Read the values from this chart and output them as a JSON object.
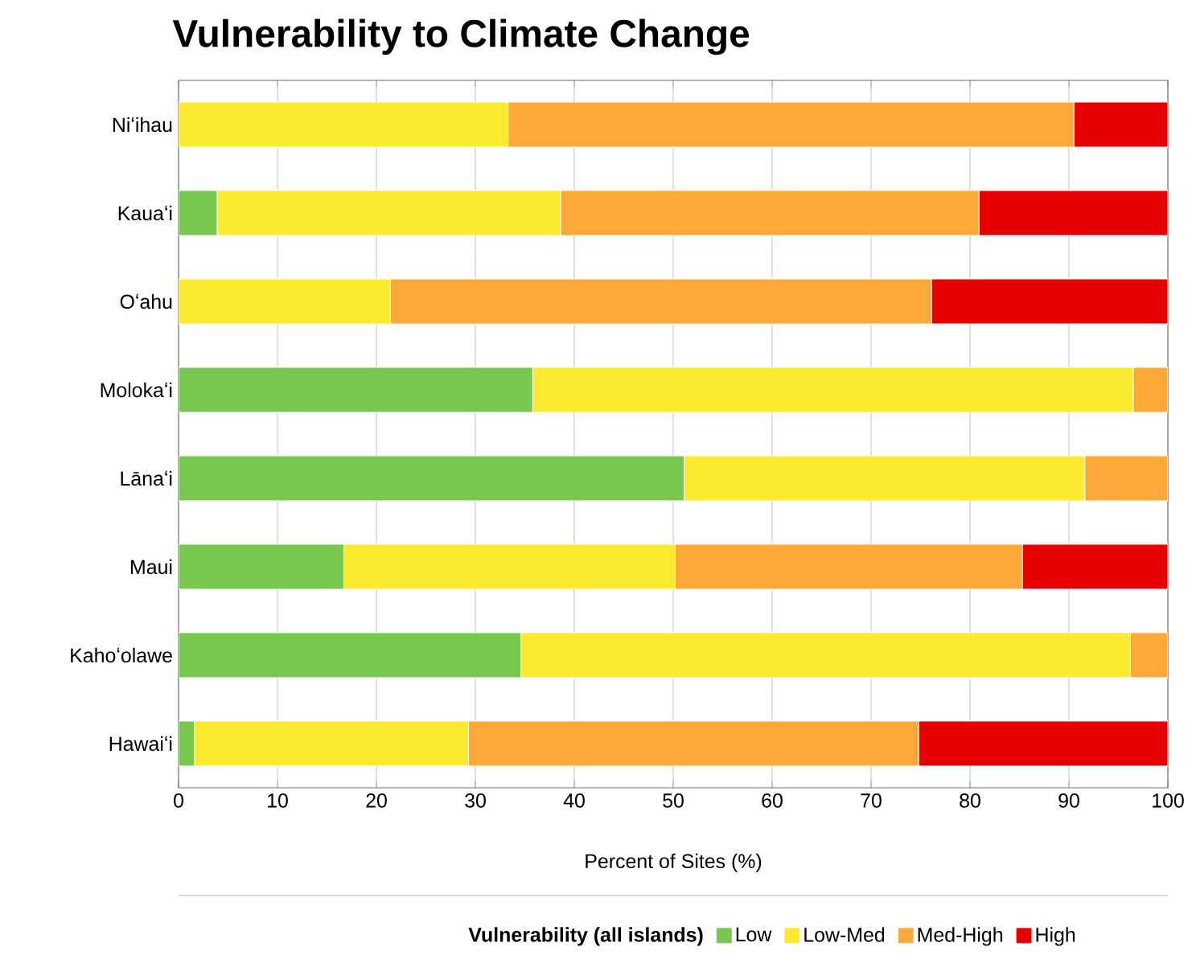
{
  "chart_data": {
    "type": "bar",
    "orientation": "horizontal",
    "stacked": true,
    "title": "Vulnerability to Climate Change",
    "xlabel": "Percent of Sites (%)",
    "legend_title": "Vulnerability (all islands)",
    "categories": [
      "Niʻihau",
      "Kauaʻi",
      "Oʻahu",
      "Molokaʻi",
      "Lānaʻi",
      "Maui",
      "Kahoʻolawe",
      "Hawaiʻi"
    ],
    "series": [
      {
        "name": "Low",
        "color": "#78c850",
        "values": [
          0,
          3.9,
          0,
          35.8,
          51.1,
          16.7,
          34.6,
          1.6
        ]
      },
      {
        "name": "Low-Med",
        "color": "#fbea30",
        "values": [
          33.3,
          34.7,
          21.4,
          60.7,
          40.5,
          33.5,
          61.6,
          27.7
        ]
      },
      {
        "name": "Med-High",
        "color": "#fda93a",
        "values": [
          57.2,
          42.3,
          54.7,
          3.5,
          8.4,
          35.1,
          3.8,
          45.5
        ]
      },
      {
        "name": "High",
        "color": "#e60000",
        "values": [
          9.5,
          19.1,
          23.9,
          0,
          0,
          14.7,
          0,
          25.2
        ]
      }
    ],
    "xlim": [
      0,
      100
    ],
    "xticks": [
      0,
      10,
      20,
      30,
      40,
      50,
      60,
      70,
      80,
      90,
      100
    ],
    "grid": "x",
    "legend": "bottom"
  }
}
